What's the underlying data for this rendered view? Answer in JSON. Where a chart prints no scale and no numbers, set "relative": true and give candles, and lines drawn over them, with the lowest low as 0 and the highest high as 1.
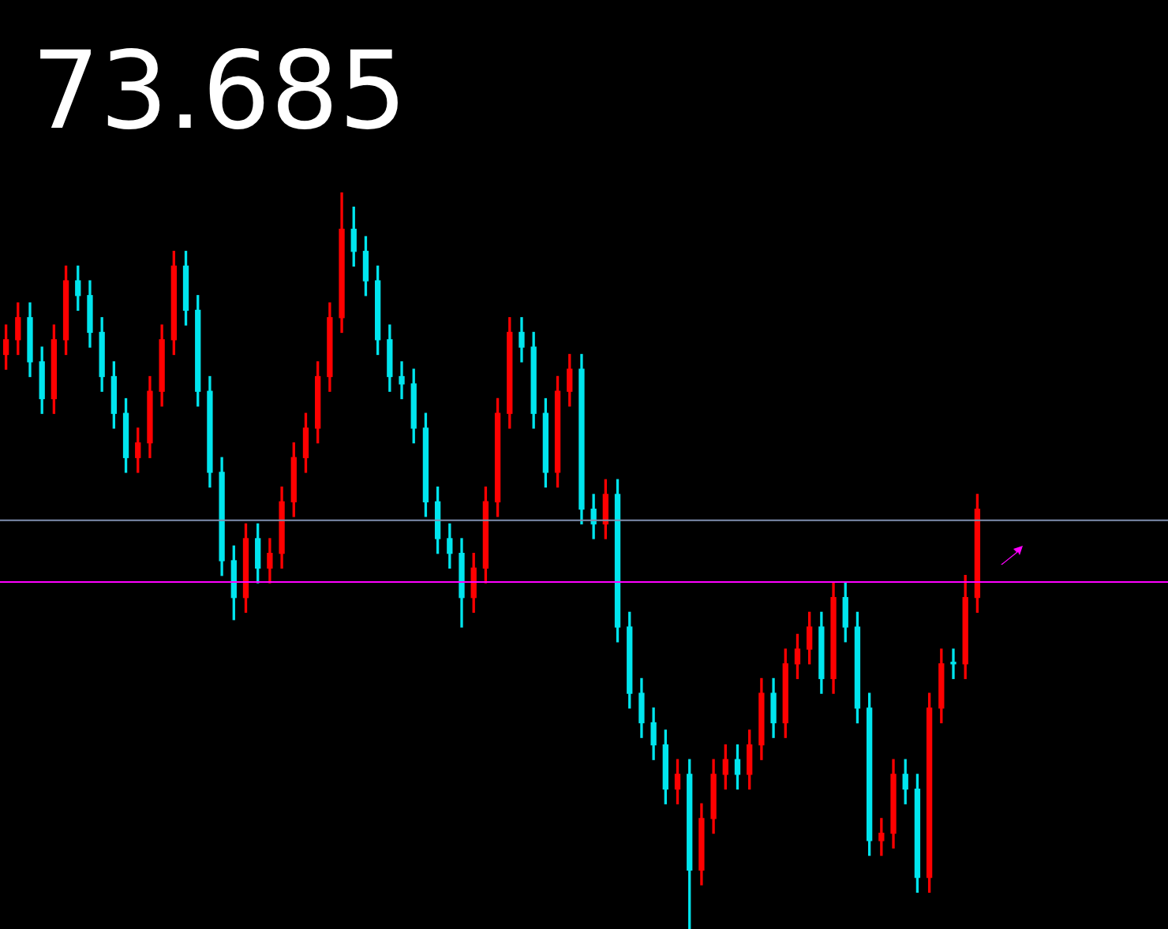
{
  "chart_data": {
    "type": "candlestick",
    "title": "73.685",
    "relative": true,
    "categories": [
      null,
      null,
      null,
      null,
      null,
      null,
      null,
      null,
      null,
      null,
      null,
      null,
      null,
      null,
      null,
      null,
      null,
      null,
      null,
      null,
      null,
      null,
      null,
      null,
      null,
      null,
      null,
      null,
      null,
      null,
      null,
      null,
      null,
      null,
      null,
      null,
      null,
      null,
      null,
      null,
      null,
      null,
      null,
      null,
      null,
      null,
      null,
      null,
      null,
      null,
      null,
      null,
      null,
      null,
      null,
      null,
      null,
      null,
      null,
      null,
      null,
      null,
      null,
      null,
      null,
      null,
      null,
      null,
      null,
      null,
      null,
      null,
      null,
      null,
      null,
      null,
      null,
      null,
      null,
      null,
      null,
      null
    ],
    "ohlc": [
      [
        0.78,
        0.82,
        0.76,
        0.8
      ],
      [
        0.8,
        0.85,
        0.78,
        0.83
      ],
      [
        0.83,
        0.85,
        0.75,
        0.77
      ],
      [
        0.77,
        0.79,
        0.7,
        0.72
      ],
      [
        0.72,
        0.82,
        0.7,
        0.8
      ],
      [
        0.8,
        0.9,
        0.78,
        0.88
      ],
      [
        0.88,
        0.9,
        0.84,
        0.86
      ],
      [
        0.86,
        0.88,
        0.79,
        0.81
      ],
      [
        0.81,
        0.83,
        0.73,
        0.75
      ],
      [
        0.75,
        0.77,
        0.68,
        0.7
      ],
      [
        0.7,
        0.72,
        0.62,
        0.64
      ],
      [
        0.64,
        0.68,
        0.62,
        0.66
      ],
      [
        0.66,
        0.75,
        0.64,
        0.73
      ],
      [
        0.73,
        0.82,
        0.71,
        0.8
      ],
      [
        0.8,
        0.92,
        0.78,
        0.9
      ],
      [
        0.9,
        0.92,
        0.82,
        0.84
      ],
      [
        0.84,
        0.86,
        0.71,
        0.73
      ],
      [
        0.73,
        0.75,
        0.6,
        0.62
      ],
      [
        0.62,
        0.64,
        0.48,
        0.5
      ],
      [
        0.5,
        0.52,
        0.42,
        0.45
      ],
      [
        0.45,
        0.55,
        0.43,
        0.53
      ],
      [
        0.53,
        0.55,
        0.47,
        0.49
      ],
      [
        0.49,
        0.53,
        0.47,
        0.51
      ],
      [
        0.51,
        0.6,
        0.49,
        0.58
      ],
      [
        0.58,
        0.66,
        0.56,
        0.64
      ],
      [
        0.64,
        0.7,
        0.62,
        0.68
      ],
      [
        0.68,
        0.77,
        0.66,
        0.75
      ],
      [
        0.75,
        0.85,
        0.73,
        0.83
      ],
      [
        0.83,
        1.0,
        0.81,
        0.95
      ],
      [
        0.95,
        0.98,
        0.9,
        0.92
      ],
      [
        0.92,
        0.94,
        0.86,
        0.88
      ],
      [
        0.88,
        0.9,
        0.78,
        0.8
      ],
      [
        0.8,
        0.82,
        0.73,
        0.75
      ],
      [
        0.75,
        0.77,
        0.72,
        0.74
      ],
      [
        0.74,
        0.76,
        0.66,
        0.68
      ],
      [
        0.68,
        0.7,
        0.56,
        0.58
      ],
      [
        0.58,
        0.6,
        0.51,
        0.53
      ],
      [
        0.53,
        0.55,
        0.49,
        0.51
      ],
      [
        0.51,
        0.53,
        0.41,
        0.45
      ],
      [
        0.45,
        0.51,
        0.43,
        0.49
      ],
      [
        0.49,
        0.6,
        0.47,
        0.58
      ],
      [
        0.58,
        0.72,
        0.56,
        0.7
      ],
      [
        0.7,
        0.83,
        0.68,
        0.81
      ],
      [
        0.81,
        0.83,
        0.77,
        0.79
      ],
      [
        0.79,
        0.81,
        0.68,
        0.7
      ],
      [
        0.7,
        0.72,
        0.6,
        0.62
      ],
      [
        0.62,
        0.75,
        0.6,
        0.73
      ],
      [
        0.73,
        0.78,
        0.71,
        0.76
      ],
      [
        0.76,
        0.78,
        0.55,
        0.57
      ],
      [
        0.57,
        0.59,
        0.53,
        0.55
      ],
      [
        0.55,
        0.61,
        0.53,
        0.59
      ],
      [
        0.59,
        0.61,
        0.39,
        0.41
      ],
      [
        0.41,
        0.43,
        0.3,
        0.32
      ],
      [
        0.32,
        0.34,
        0.26,
        0.28
      ],
      [
        0.28,
        0.3,
        0.23,
        0.25
      ],
      [
        0.25,
        0.27,
        0.17,
        0.19
      ],
      [
        0.19,
        0.23,
        0.17,
        0.21
      ],
      [
        0.21,
        0.23,
        0.0,
        0.08
      ],
      [
        0.08,
        0.17,
        0.06,
        0.15
      ],
      [
        0.15,
        0.23,
        0.13,
        0.21
      ],
      [
        0.21,
        0.25,
        0.19,
        0.23
      ],
      [
        0.23,
        0.25,
        0.19,
        0.21
      ],
      [
        0.21,
        0.27,
        0.19,
        0.25
      ],
      [
        0.25,
        0.34,
        0.23,
        0.32
      ],
      [
        0.32,
        0.34,
        0.26,
        0.28
      ],
      [
        0.28,
        0.38,
        0.26,
        0.36
      ],
      [
        0.36,
        0.4,
        0.34,
        0.38
      ],
      [
        0.38,
        0.43,
        0.36,
        0.41
      ],
      [
        0.41,
        0.43,
        0.32,
        0.34
      ],
      [
        0.34,
        0.47,
        0.32,
        0.45
      ],
      [
        0.45,
        0.47,
        0.39,
        0.41
      ],
      [
        0.41,
        0.43,
        0.28,
        0.3
      ],
      [
        0.3,
        0.32,
        0.1,
        0.12
      ],
      [
        0.12,
        0.15,
        0.1,
        0.13
      ],
      [
        0.13,
        0.23,
        0.11,
        0.21
      ],
      [
        0.21,
        0.23,
        0.17,
        0.19
      ],
      [
        0.19,
        0.21,
        0.05,
        0.07
      ],
      [
        0.07,
        0.32,
        0.05,
        0.3
      ],
      [
        0.3,
        0.38,
        0.28,
        0.36
      ],
      [
        0.36,
        0.38,
        0.34,
        0.36
      ],
      [
        0.36,
        0.48,
        0.34,
        0.45
      ],
      [
        0.45,
        0.59,
        0.43,
        0.57
      ]
    ],
    "colors": [
      "#ff0000",
      "#ff0000",
      "#00e5ee",
      "#00e5ee",
      "#ff0000",
      "#ff0000",
      "#00e5ee",
      "#00e5ee",
      "#00e5ee",
      "#00e5ee",
      "#00e5ee",
      "#ff0000",
      "#ff0000",
      "#ff0000",
      "#ff0000",
      "#00e5ee",
      "#00e5ee",
      "#00e5ee",
      "#00e5ee",
      "#00e5ee",
      "#ff0000",
      "#00e5ee",
      "#ff0000",
      "#ff0000",
      "#ff0000",
      "#ff0000",
      "#ff0000",
      "#ff0000",
      "#ff0000",
      "#00e5ee",
      "#00e5ee",
      "#00e5ee",
      "#00e5ee",
      "#00e5ee",
      "#00e5ee",
      "#00e5ee",
      "#00e5ee",
      "#00e5ee",
      "#00e5ee",
      "#ff0000",
      "#ff0000",
      "#ff0000",
      "#ff0000",
      "#00e5ee",
      "#00e5ee",
      "#00e5ee",
      "#ff0000",
      "#ff0000",
      "#00e5ee",
      "#00e5ee",
      "#ff0000",
      "#00e5ee",
      "#00e5ee",
      "#00e5ee",
      "#00e5ee",
      "#00e5ee",
      "#ff0000",
      "#00e5ee",
      "#ff0000",
      "#ff0000",
      "#ff0000",
      "#00e5ee",
      "#ff0000",
      "#ff0000",
      "#00e5ee",
      "#ff0000",
      "#ff0000",
      "#ff0000",
      "#00e5ee",
      "#ff0000",
      "#00e5ee",
      "#00e5ee",
      "#00e5ee",
      "#ff0000",
      "#ff0000",
      "#00e5ee",
      "#00e5ee",
      "#ff0000",
      "#ff0000",
      "#00e5ee",
      "#ff0000",
      "#ff0000"
    ],
    "ref_lines": [
      {
        "axis": "y",
        "value": 0.555,
        "color": "#7f8fb0"
      },
      {
        "axis": "y",
        "value": 0.471,
        "color": "#ff00ff"
      }
    ]
  }
}
